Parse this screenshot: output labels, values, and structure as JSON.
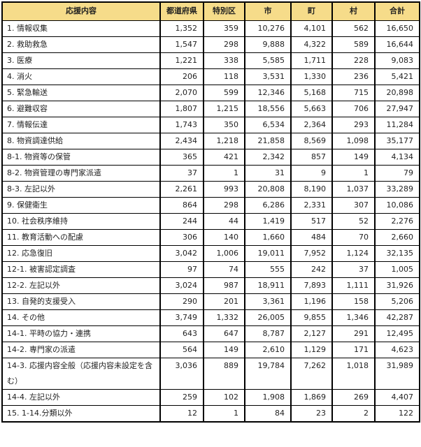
{
  "table": {
    "header_bg": "#F6DC8A",
    "border_color": "#000000",
    "columns": [
      "応援内容",
      "都道府県",
      "特別区",
      "市",
      "町",
      "村",
      "合計"
    ],
    "rows": [
      {
        "label": "1. 情報収集",
        "values": [
          "1,352",
          "359",
          "10,276",
          "4,101",
          "562",
          "16,650"
        ]
      },
      {
        "label": "2. 救助救急",
        "values": [
          "1,547",
          "298",
          "9,888",
          "4,322",
          "589",
          "16,644"
        ]
      },
      {
        "label": "3. 医療",
        "values": [
          "1,221",
          "338",
          "5,585",
          "1,711",
          "228",
          "9,083"
        ]
      },
      {
        "label": "4. 消火",
        "values": [
          "206",
          "118",
          "3,531",
          "1,330",
          "236",
          "5,421"
        ]
      },
      {
        "label": "5. 緊急輸送",
        "values": [
          "2,070",
          "599",
          "12,346",
          "5,168",
          "715",
          "20,898"
        ]
      },
      {
        "label": "6. 避難収容",
        "values": [
          "1,807",
          "1,215",
          "18,556",
          "5,663",
          "706",
          "27,947"
        ]
      },
      {
        "label": "7. 情報伝達",
        "values": [
          "1,743",
          "350",
          "6,534",
          "2,364",
          "293",
          "11,284"
        ]
      },
      {
        "label": "8. 物資調達供給",
        "values": [
          "2,434",
          "1,218",
          "21,858",
          "8,569",
          "1,098",
          "35,177"
        ]
      },
      {
        "label": "8-1. 物資等の保管",
        "values": [
          "365",
          "421",
          "2,342",
          "857",
          "149",
          "4,134"
        ]
      },
      {
        "label": "8-2. 物資管理の専門家派遣",
        "values": [
          "37",
          "1",
          "31",
          "9",
          "1",
          "79"
        ]
      },
      {
        "label": "8-3. 左記以外",
        "values": [
          "2,261",
          "993",
          "20,808",
          "8,190",
          "1,037",
          "33,289"
        ]
      },
      {
        "label": "9. 保健衛生",
        "values": [
          "864",
          "298",
          "6,286",
          "2,331",
          "307",
          "10,086"
        ]
      },
      {
        "label": "10. 社会秩序維持",
        "values": [
          "244",
          "44",
          "1,419",
          "517",
          "52",
          "2,276"
        ]
      },
      {
        "label": "11. 教育活動への配慮",
        "values": [
          "306",
          "140",
          "1,660",
          "484",
          "70",
          "2,660"
        ]
      },
      {
        "label": "12. 応急復旧",
        "values": [
          "3,042",
          "1,006",
          "19,011",
          "7,952",
          "1,124",
          "32,135"
        ]
      },
      {
        "label": "12-1. 被害認定調査",
        "values": [
          "97",
          "74",
          "555",
          "242",
          "37",
          "1,005"
        ]
      },
      {
        "label": "12-2. 左記以外",
        "values": [
          "3,024",
          "987",
          "18,911",
          "7,893",
          "1,111",
          "31,926"
        ]
      },
      {
        "label": "13. 自発的支援受入",
        "values": [
          "290",
          "201",
          "3,361",
          "1,196",
          "158",
          "5,206"
        ]
      },
      {
        "label": "14. その他",
        "values": [
          "3,749",
          "1,332",
          "26,005",
          "9,855",
          "1,346",
          "42,287"
        ]
      },
      {
        "label": "14-1. 平時の協力・連携",
        "values": [
          "643",
          "647",
          "8,787",
          "2,127",
          "291",
          "12,495"
        ]
      },
      {
        "label": "14-2. 専門家の派遣",
        "values": [
          "564",
          "149",
          "2,610",
          "1,129",
          "171",
          "4,623"
        ]
      },
      {
        "label": "14-3. 応援内容全般（応援内容未設定を含む）",
        "values": [
          "3,036",
          "889",
          "19,784",
          "7,262",
          "1,018",
          "31,989"
        ]
      },
      {
        "label": "14-4. 左記以外",
        "values": [
          "259",
          "102",
          "1,908",
          "1,869",
          "269",
          "4,407"
        ]
      },
      {
        "label": "15. 1-14.分類以外",
        "values": [
          "12",
          "1",
          "84",
          "23",
          "2",
          "122"
        ]
      }
    ]
  }
}
